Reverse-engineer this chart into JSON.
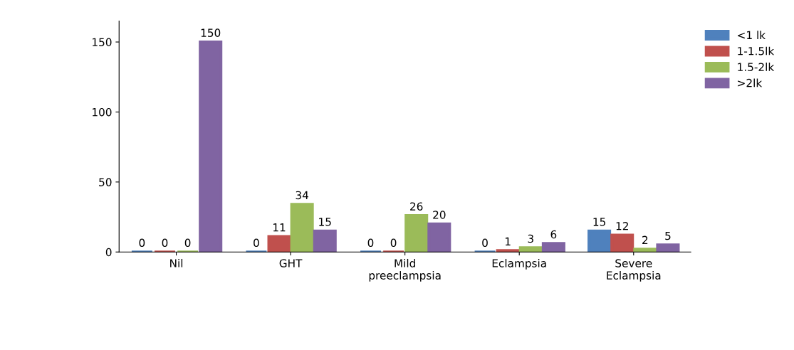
{
  "chart_data": {
    "type": "bar",
    "categories": [
      "Nil",
      "GHT",
      "Mild\npreeclampsia",
      "Eclampsia",
      "Severe\nEclampsia"
    ],
    "series": [
      {
        "name": "<1 lk",
        "color": "#4f81bd",
        "values": [
          0,
          0,
          0,
          0,
          15
        ]
      },
      {
        "name": "1-1.5lk",
        "color": "#c0504d",
        "values": [
          0,
          11,
          0,
          1,
          12
        ]
      },
      {
        "name": "1.5-2lk",
        "color": "#9bbb59",
        "values": [
          0,
          34,
          26,
          3,
          2
        ]
      },
      {
        "name": ">2lk",
        "color": "#8064a2",
        "values": [
          150,
          15,
          20,
          6,
          5
        ]
      }
    ],
    "ylim": [
      0,
      165
    ],
    "yticks": [
      0,
      50,
      100,
      150
    ],
    "grid": false,
    "legend": "top right",
    "data_labels": true
  }
}
